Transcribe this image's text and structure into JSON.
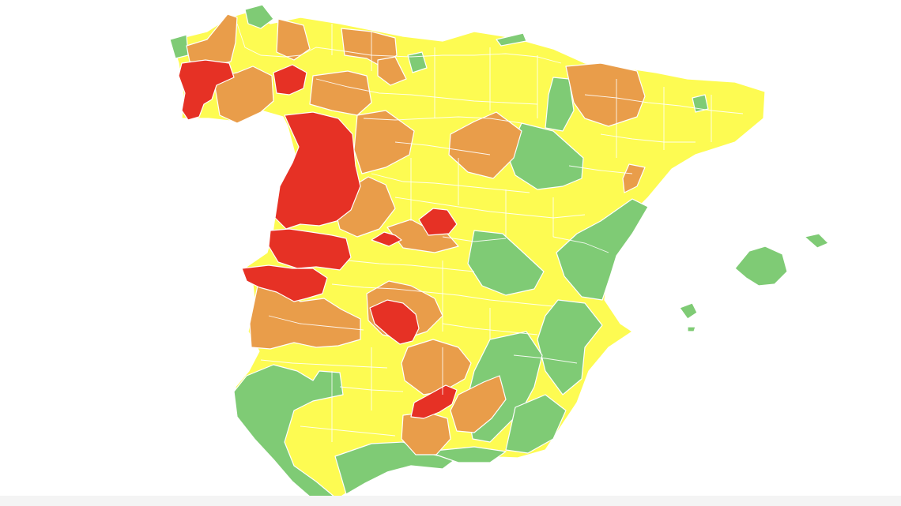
{
  "map": {
    "level_colors": {
      "green": "#7fcb75",
      "yellow": "#fdfb52",
      "orange": "#e99d4a",
      "red": "#e63125"
    },
    "background": "#ffffff"
  }
}
